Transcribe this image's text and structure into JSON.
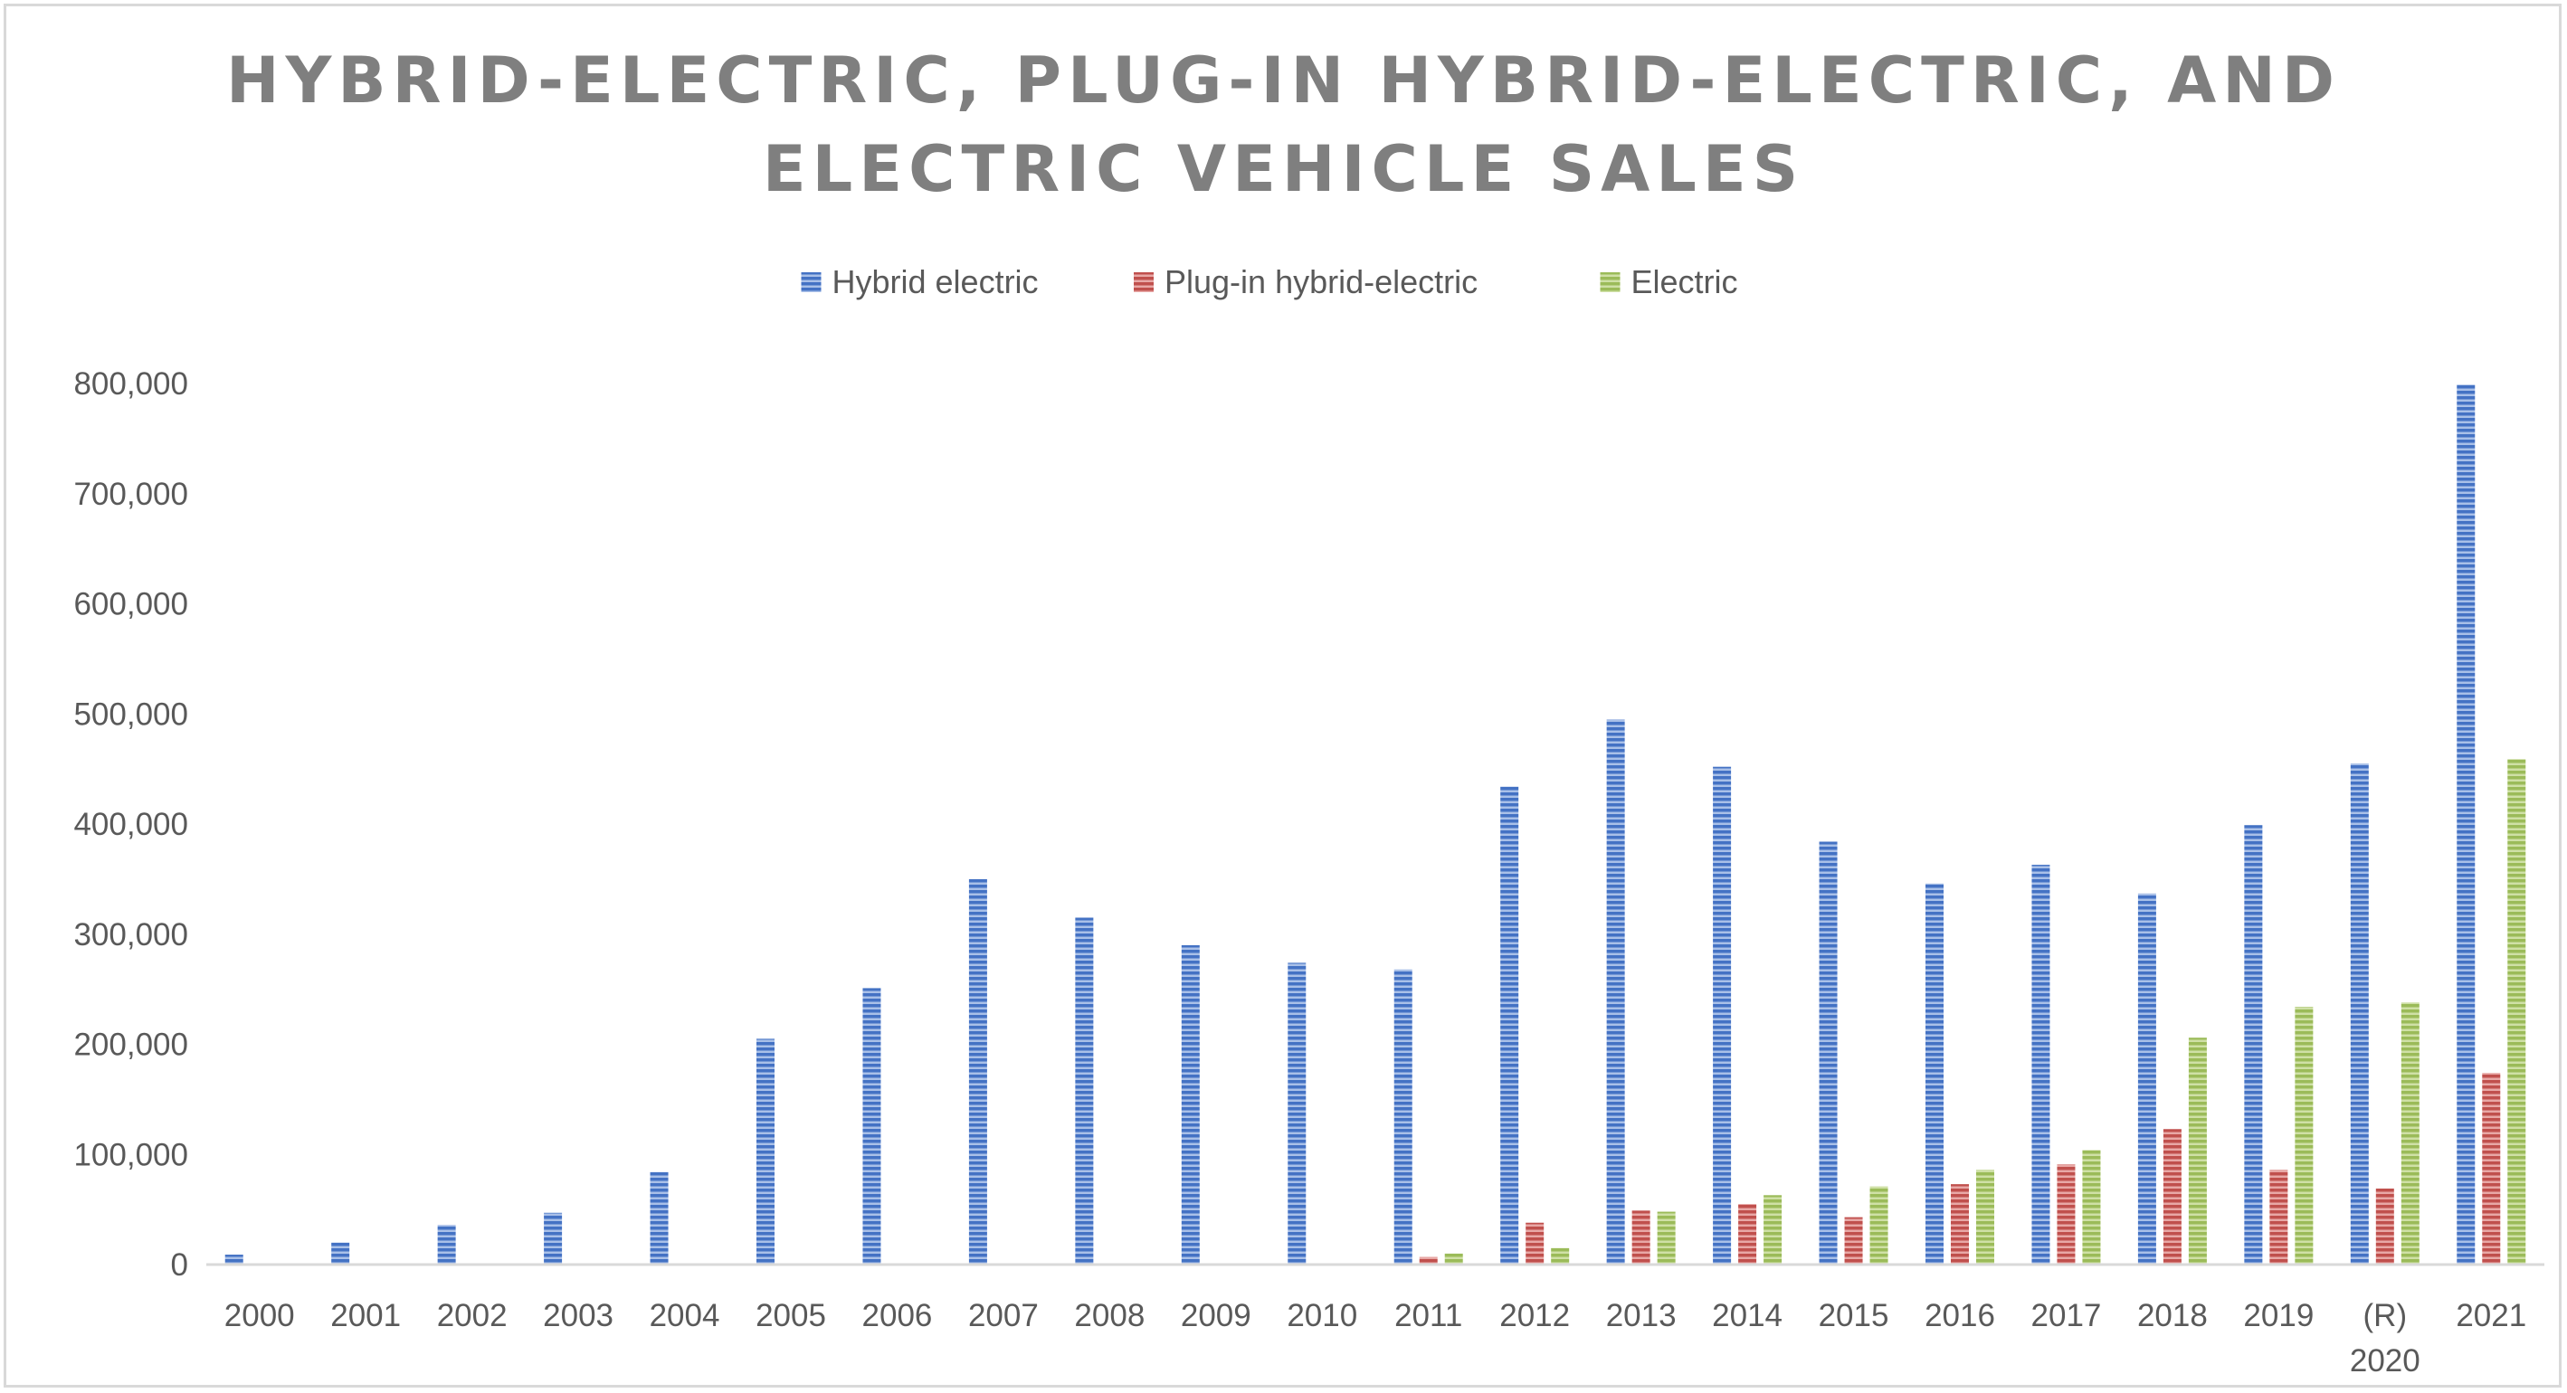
{
  "chart_data": {
    "type": "bar",
    "title_lines": [
      "HYBRID-ELECTRIC, PLUG-IN HYBRID-ELECTRIC, AND",
      "ELECTRIC VEHICLE SALES"
    ],
    "categories": [
      [
        "2000"
      ],
      [
        "2001"
      ],
      [
        "2002"
      ],
      [
        "2003"
      ],
      [
        "2004"
      ],
      [
        "2005"
      ],
      [
        "2006"
      ],
      [
        "2007"
      ],
      [
        "2008"
      ],
      [
        "2009"
      ],
      [
        "2010"
      ],
      [
        "2011"
      ],
      [
        "2012"
      ],
      [
        "2013"
      ],
      [
        "2014"
      ],
      [
        "2015"
      ],
      [
        "2016"
      ],
      [
        "2017"
      ],
      [
        "2018"
      ],
      [
        "2019"
      ],
      [
        "(R)",
        "2020"
      ],
      [
        "2021"
      ]
    ],
    "series": [
      {
        "name": "Hybrid electric",
        "color": "#4472c4",
        "values": [
          9000,
          20000,
          36000,
          47000,
          84000,
          205000,
          251000,
          350000,
          315000,
          290000,
          274000,
          268000,
          434000,
          495000,
          452000,
          384000,
          346000,
          363000,
          337000,
          399000,
          455000,
          799000
        ]
      },
      {
        "name": "Plug-in hybrid-electric",
        "color": "#c0504d",
        "values": [
          0,
          0,
          0,
          0,
          0,
          0,
          0,
          0,
          0,
          0,
          0,
          7000,
          38000,
          49000,
          55000,
          43000,
          73000,
          91000,
          123000,
          86000,
          69000,
          174000
        ]
      },
      {
        "name": "Electric",
        "color": "#9bbb59",
        "values": [
          0,
          0,
          0,
          0,
          0,
          0,
          0,
          0,
          0,
          0,
          0,
          10000,
          15000,
          48000,
          63000,
          71000,
          86000,
          104000,
          206000,
          234000,
          238000,
          459000
        ]
      }
    ],
    "y_ticks": [
      "0",
      "100,000",
      "200,000",
      "300,000",
      "400,000",
      "500,000",
      "600,000",
      "700,000",
      "800,000"
    ],
    "ylim": [
      0,
      800000
    ],
    "legend_position": "top-center",
    "grid": false
  }
}
